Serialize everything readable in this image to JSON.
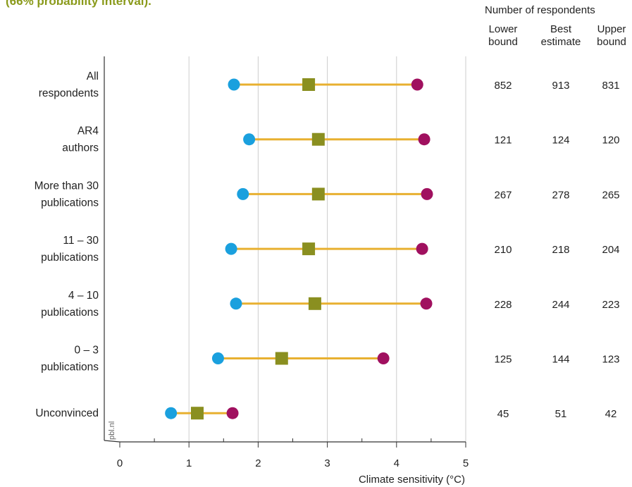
{
  "header": {
    "title": "(66% probability interval).",
    "table_title": "Number of respondents",
    "col_lower": "Lower bound",
    "col_best": "Best estimate",
    "col_upper": "Upper bound"
  },
  "watermark": "pbl.nl",
  "colors": {
    "title": "#8a9a1b",
    "lower": "#1aa0de",
    "best": "#8a8f20",
    "upper": "#a0105f",
    "range_line": "#e8b030",
    "grid": "#cccccc",
    "axis": "#333333"
  },
  "chart_data": {
    "type": "scatter",
    "subtype": "range-dot-plot",
    "xlabel": "Climate sensitivity (°C)",
    "xlim": [
      0,
      5
    ],
    "xticks": [
      "0",
      "1",
      "2",
      "3",
      "4",
      "5"
    ],
    "grid": "vertical",
    "categories": [
      "All respondents",
      "AR4 authors",
      "More than 30 publications",
      "11 – 30 publications",
      "4 – 10 publications",
      "0 – 3 publications",
      "Unconvinced"
    ],
    "series": [
      {
        "name": "Lower bound",
        "marker": "circle",
        "values": [
          1.65,
          1.87,
          1.78,
          1.61,
          1.68,
          1.42,
          0.74
        ]
      },
      {
        "name": "Best estimate",
        "marker": "square",
        "values": [
          2.73,
          2.87,
          2.87,
          2.73,
          2.82,
          2.34,
          1.12
        ]
      },
      {
        "name": "Upper bound",
        "marker": "circle",
        "values": [
          4.3,
          4.4,
          4.44,
          4.37,
          4.43,
          3.81,
          1.63
        ]
      }
    ],
    "respondents": {
      "lower": [
        "852",
        "121",
        "267",
        "210",
        "228",
        "125",
        "45"
      ],
      "best": [
        "913",
        "124",
        "278",
        "218",
        "244",
        "144",
        "51"
      ],
      "upper": [
        "831",
        "120",
        "265",
        "204",
        "223",
        "123",
        "42"
      ]
    }
  }
}
